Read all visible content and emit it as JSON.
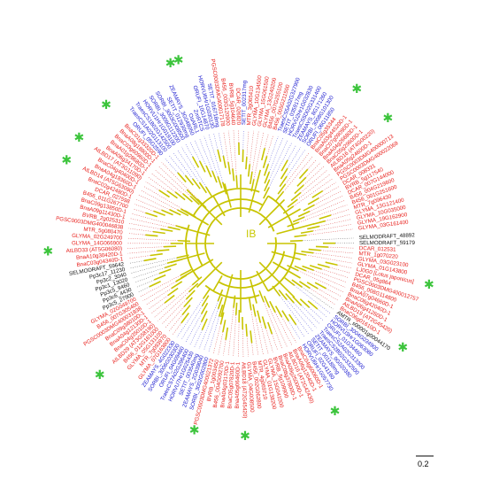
{
  "clade_label": "IB",
  "scale_bar_label": "0.2",
  "colors": {
    "branch": "#c8c400",
    "dicot": "#e8201c",
    "monocot": "#2020d0",
    "other": "#111111",
    "star": "#3cc43c",
    "dotted": "#e06060"
  },
  "leaves": [
    {
      "label": "SELMODRAFT_48892",
      "color": "other"
    },
    {
      "label": "SELMODRAFT_59179",
      "color": "other"
    },
    {
      "label": "DCAR_012531",
      "color": "dicot"
    },
    {
      "label": "MTR_1g070220",
      "color": "dicot"
    },
    {
      "label": "GLYMA_03G023100",
      "color": "dicot"
    },
    {
      "label": "GLYMA_01G143800",
      "color": "dicot"
    },
    {
      "label": "LJ0G0 [Lotus japonicus]",
      "color": "dicot",
      "star": true
    },
    {
      "label": "DCAR_05g864",
      "color": "dicot"
    },
    {
      "label": "PGSC0003DMG400012757",
      "color": "dicot"
    },
    {
      "label": "B456_008G114800",
      "color": "dicot"
    },
    {
      "label": "BnaA07g04660D-1",
      "color": "dicot"
    },
    {
      "label": "BnaC06g42040D-1",
      "color": "dicot"
    },
    {
      "label": "BnaA06g41260D-1",
      "color": "dicot"
    },
    {
      "label": "AtLBD19 (AT2G45420)",
      "color": "dicot"
    },
    {
      "label": "BnaC06g01610D-1",
      "color": "dicot",
      "star": true
    },
    {
      "label": "AMTR_s00001g00044170",
      "color": "other"
    },
    {
      "label": "SORBI_3004G034900",
      "color": "monocot"
    },
    {
      "label": "HORVU3Hr1G063080",
      "color": "monocot"
    },
    {
      "label": "ORUFI_01G34460",
      "color": "monocot"
    },
    {
      "label": "TraesCS2A02G313300",
      "color": "monocot"
    },
    {
      "label": "TraesCS2B02G332500",
      "color": "monocot"
    },
    {
      "label": "ZEAMAYS_9G020380",
      "color": "monocot"
    },
    {
      "label": "SETIT_001189mg",
      "color": "monocot"
    },
    {
      "label": "ORUFI_02G41160",
      "color": "monocot"
    },
    {
      "label": "HORVU6Hr1G057730",
      "color": "monocot"
    },
    {
      "label": "BnaC04g60060D-1",
      "color": "dicot",
      "star": true
    },
    {
      "label": "BnaA06g12040D-1",
      "color": "dicot"
    },
    {
      "label": "AtLBD16 (AT2G42430)",
      "color": "dicot"
    },
    {
      "label": "BnaA09g25000D-1",
      "color": "dicot"
    },
    {
      "label": "BnaC08g37800D-1",
      "color": "dicot"
    },
    {
      "label": "BVRB_5g109900",
      "color": "dicot"
    },
    {
      "label": "GLYMA_15G041000",
      "color": "dicot"
    },
    {
      "label": "GLYMA_01G138200",
      "color": "dicot"
    },
    {
      "label": "MTR_4g069710",
      "color": "dicot"
    },
    {
      "label": "B456_002G062800",
      "color": "dicot"
    },
    {
      "label": "GLYMA_04G008500",
      "color": "dicot"
    },
    {
      "label": "AtLBD18 (AT2G45420)",
      "color": "dicot",
      "star": true
    },
    {
      "label": "BnaA05g06460D-1",
      "color": "dicot"
    },
    {
      "label": "BnaC05g07820D-1",
      "color": "dicot"
    },
    {
      "label": "BnaA04g03170D-1",
      "color": "dicot"
    },
    {
      "label": "B456_004G092700",
      "color": "dicot"
    },
    {
      "label": "BVRB_1g003450",
      "color": "dicot"
    },
    {
      "label": "PGSC0003DMG400021372",
      "color": "dicot",
      "star": true
    },
    {
      "label": "SORBI_3002G002800",
      "color": "monocot"
    },
    {
      "label": "ZEAMAYS_2G039040",
      "color": "monocot"
    },
    {
      "label": "SETIT_003540mg",
      "color": "monocot"
    },
    {
      "label": "HORVU7Hr1G025430",
      "color": "monocot"
    },
    {
      "label": "TraesCS7A02G296400",
      "color": "monocot"
    },
    {
      "label": "ORUFI_04G09460",
      "color": "monocot"
    },
    {
      "label": "SORBI_3006G030300",
      "color": "monocot"
    },
    {
      "label": "ZEAMAYS_4G022330",
      "color": "monocot"
    },
    {
      "label": "GLYMA_07G163800",
      "color": "dicot"
    },
    {
      "label": "MTR_7g093970",
      "color": "dicot"
    },
    {
      "label": "GLYMA_05G131100",
      "color": "dicot"
    },
    {
      "label": "B456_012G161000",
      "color": "dicot"
    },
    {
      "label": "AtLBD29 (AT3G58190)",
      "color": "dicot",
      "star": true
    },
    {
      "label": "BnaC04g35010D-1",
      "color": "dicot"
    },
    {
      "label": "BnaA04g12130D-1",
      "color": "dicot"
    },
    {
      "label": "BnaC09g38010D-1",
      "color": "dicot"
    },
    {
      "label": "PGSC0003DMG400031838",
      "color": "dicot"
    },
    {
      "label": "B456_007G305400",
      "color": "dicot"
    },
    {
      "label": "GLYMA_02G049700",
      "color": "dicot"
    },
    {
      "label": "Pp3c5_27900",
      "color": "other"
    },
    {
      "label": "Pp3c6_4430",
      "color": "other"
    },
    {
      "label": "Pp3c5_9460",
      "color": "other"
    },
    {
      "label": "Pp3c1_13020",
      "color": "other"
    },
    {
      "label": "Pp3c2_3040",
      "color": "other"
    },
    {
      "label": "Pp3c17_11230",
      "color": "other"
    },
    {
      "label": "SELMODRAFT_59642",
      "color": "other"
    },
    {
      "label": "BnaC03g04340D-1",
      "color": "dicot"
    },
    {
      "label": "BnaA10g30420D-1",
      "color": "dicot"
    },
    {
      "label": "AtLBD33 (AT5G06080)",
      "color": "dicot",
      "star": true
    },
    {
      "label": "GLYMA_14G066900",
      "color": "dicot"
    },
    {
      "label": "GLYMA_02G249700",
      "color": "dicot"
    },
    {
      "label": "MTR_5g080470",
      "color": "dicot"
    },
    {
      "label": "PGSC0003DMG400046838",
      "color": "dicot"
    },
    {
      "label": "BVRB_2g025310",
      "color": "dicot"
    },
    {
      "label": "BnaA09g11430D-1",
      "color": "dicot"
    },
    {
      "label": "BnaC09g13850D-1",
      "color": "dicot"
    },
    {
      "label": "B456_011G267700",
      "color": "dicot"
    },
    {
      "label": "DCAR_027598",
      "color": "dicot"
    },
    {
      "label": "BnaC02g42480D-1",
      "color": "dicot"
    },
    {
      "label": "AtLBD14 (AT5G63090)",
      "color": "dicot",
      "star": true
    },
    {
      "label": "BnaA04g18360D-1",
      "color": "dicot"
    },
    {
      "label": "BnaC04g40400D-1",
      "color": "dicot"
    },
    {
      "label": "AtLBD17 (AT3G11090)",
      "color": "dicot",
      "star": true
    },
    {
      "label": "BnaA06g34170D-1",
      "color": "dicot"
    },
    {
      "label": "BnaA01g28680D-1",
      "color": "dicot"
    },
    {
      "label": "BnaC03g60960D-1",
      "color": "dicot"
    },
    {
      "label": "BnaA08g18800D-1",
      "color": "dicot"
    },
    {
      "label": "BnaC01g33320D-1",
      "color": "dicot",
      "star": true
    },
    {
      "label": "ORUFI_05G2590",
      "color": "monocot"
    },
    {
      "label": "TraesCS1A02G113100",
      "color": "monocot"
    },
    {
      "label": "TraesCS1B02G142500",
      "color": "monocot"
    },
    {
      "label": "HORVU1Hr1G019100",
      "color": "monocot"
    },
    {
      "label": "SORBI_3009G112200",
      "color": "monocot"
    },
    {
      "label": "SORBI_3003G008500",
      "color": "monocot"
    },
    {
      "label": "SETIT_012930mg",
      "color": "monocot"
    },
    {
      "label": "ZEAMAYS_3G048050",
      "color": "monocot"
    },
    {
      "label": "OsARL1",
      "color": "monocot",
      "star": true
    },
    {
      "label": "ZmRTCS",
      "color": "monocot",
      "star": true
    },
    {
      "label": "ORUFI_10G14870",
      "color": "monocot"
    },
    {
      "label": "HORVU6Hr1G030130",
      "color": "monocot"
    },
    {
      "label": "SETIT_016718mg",
      "color": "monocot"
    },
    {
      "label": "PGSC0003DMG400017178",
      "color": "dicot"
    },
    {
      "label": "B456_003G120900",
      "color": "dicot"
    },
    {
      "label": "BVRB_5g104640",
      "color": "dicot"
    },
    {
      "label": "DCAR_026820",
      "color": "dicot"
    },
    {
      "label": "SETIT_002317mg",
      "color": "monocot"
    },
    {
      "label": "MTR_3g065410",
      "color": "dicot"
    },
    {
      "label": "GLYMA_10G134500",
      "color": "dicot"
    },
    {
      "label": "GLYMA_15G061500",
      "color": "dicot"
    },
    {
      "label": "GLYMA_13G240200",
      "color": "dicot"
    },
    {
      "label": "B456_007G255100",
      "color": "dicot"
    },
    {
      "label": "B456_005G211500",
      "color": "dicot"
    },
    {
      "label": "TraesCS5A02G327900",
      "color": "monocot"
    },
    {
      "label": "SETIT_035917mg",
      "color": "monocot"
    },
    {
      "label": "HORVU2Hr1G032830",
      "color": "monocot"
    },
    {
      "label": "TraesCS5D02G331400",
      "color": "monocot"
    },
    {
      "label": "ZEAMAYS_8G171260",
      "color": "monocot"
    },
    {
      "label": "SORBI_3008G101300",
      "color": "monocot"
    },
    {
      "label": "ORUFI_06G11850",
      "color": "monocot"
    },
    {
      "label": "BnaC05g35344",
      "color": "dicot",
      "star": true
    },
    {
      "label": "BnaA03g44520D-1",
      "color": "dicot"
    },
    {
      "label": "BnaC07g09090D-1",
      "color": "dicot"
    },
    {
      "label": "BnaA04g26680D-1",
      "color": "dicot"
    },
    {
      "label": "BnaC05g29600D-1",
      "color": "dicot"
    },
    {
      "label": "AtLBD16 (AT4G00220)",
      "color": "dicot",
      "star": true
    },
    {
      "label": "BnaA05g24600D-1",
      "color": "dicot"
    },
    {
      "label": "PGSC0003DMG400000713",
      "color": "dicot"
    },
    {
      "label": "PGSC0003DMG400022069",
      "color": "dicot"
    },
    {
      "label": "DCAR_008331",
      "color": "dicot"
    },
    {
      "label": "BVRB_5g117540",
      "color": "dicot"
    },
    {
      "label": "DCAR_007G144000",
      "color": "dicot"
    },
    {
      "label": "B456_004G219600",
      "color": "dicot"
    },
    {
      "label": "B456_001G251600",
      "color": "dicot"
    },
    {
      "label": "MTR_7g096430",
      "color": "dicot"
    },
    {
      "label": "GLYMA_13G121400",
      "color": "dicot"
    },
    {
      "label": "GLYMA_10G035000",
      "color": "dicot"
    },
    {
      "label": "GLYMA_19G162900",
      "color": "dicot"
    },
    {
      "label": "GLYMA_03G161400",
      "color": "dicot"
    }
  ]
}
